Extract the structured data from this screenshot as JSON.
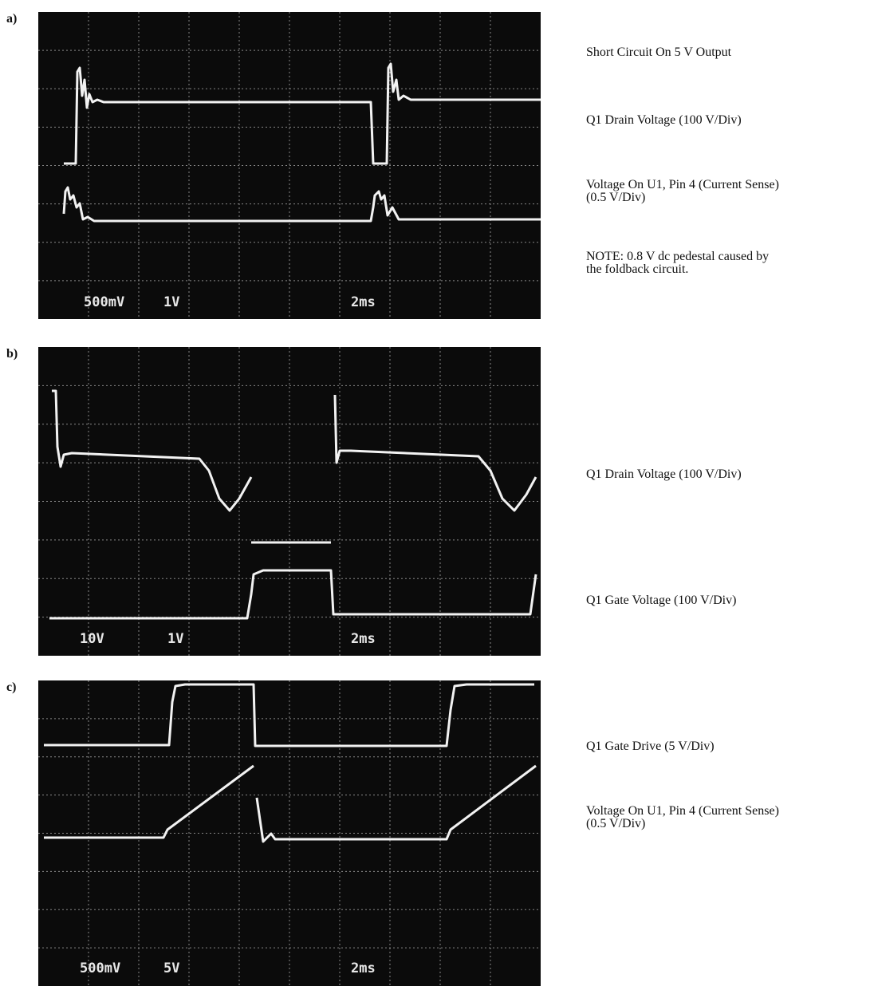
{
  "panels": [
    {
      "label": "a)",
      "scope_labels": [
        "500mV",
        "1V",
        "2ms"
      ],
      "captions": [
        {
          "lines": [
            "Short Circuit On 5 V Output"
          ]
        },
        {
          "lines": [
            "Q1 Drain Voltage (100 V/Div)"
          ]
        },
        {
          "lines": [
            "Voltage On U1, Pin 4 (Current Sense)",
            "(0.5 V/Div)"
          ]
        },
        {
          "lines": [
            "NOTE: 0.8 V dc pedestal caused by",
            "the foldback circuit."
          ]
        }
      ]
    },
    {
      "label": "b)",
      "scope_labels": [
        "10V",
        "1V",
        "2ms"
      ],
      "captions": [
        {
          "lines": [
            "Q1 Drain Voltage (100 V/Div)"
          ]
        },
        {
          "lines": [
            "Q1 Gate Voltage (100 V/Div)"
          ]
        }
      ]
    },
    {
      "label": "c)",
      "scope_labels": [
        "500mV",
        "5V",
        "2ms"
      ],
      "captions": [
        {
          "lines": [
            "Q1 Gate Drive (5 V/Div)"
          ]
        },
        {
          "lines": [
            "Voltage On U1, Pin 4 (Current Sense)",
            "(0.5 V/Div)"
          ]
        }
      ]
    }
  ]
}
